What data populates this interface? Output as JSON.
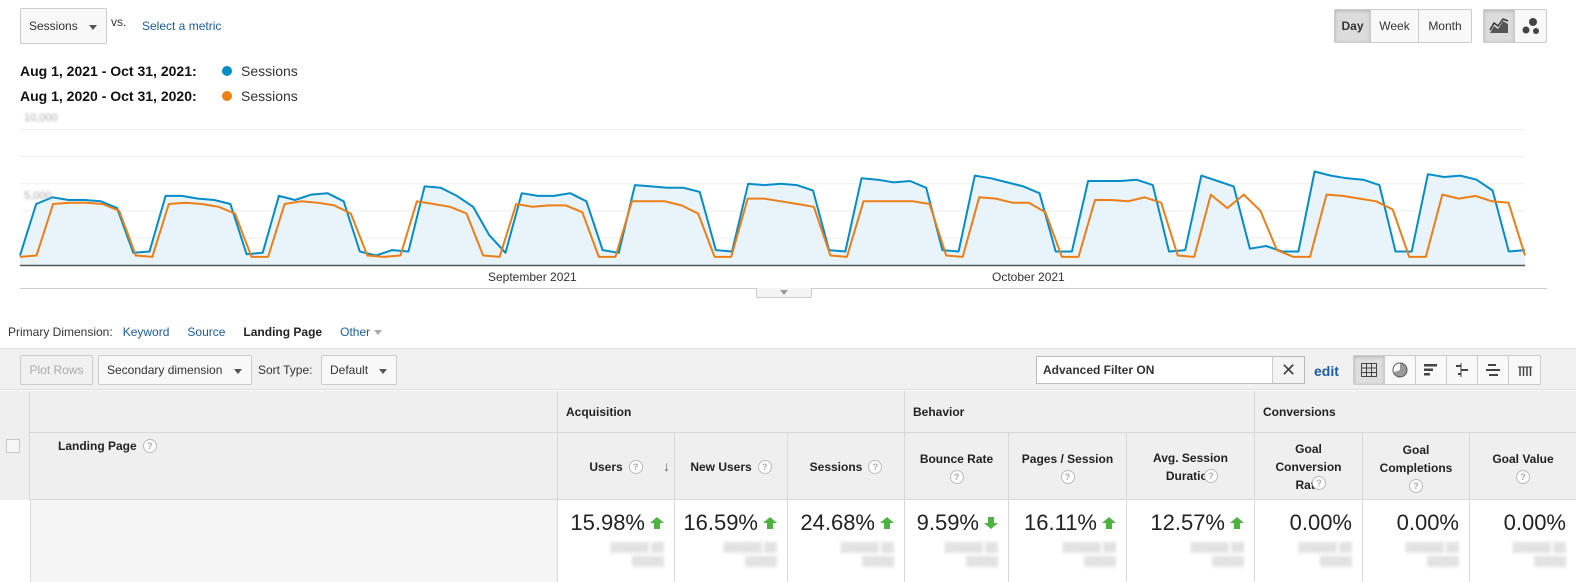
{
  "controls": {
    "metric_select": "Sessions",
    "vs_label": "vs.",
    "select_metric_link": "Select a metric",
    "periods": [
      "Day",
      "Week",
      "Month"
    ],
    "active_period": "Day",
    "chart_types": [
      "line-chart-icon",
      "motion-chart-icon"
    ]
  },
  "legend": [
    {
      "range": "Aug 1, 2021 - Oct 31, 2021:",
      "metric": "Sessions",
      "color": "#058dc7"
    },
    {
      "range": "Aug 1, 2020 - Oct 31, 2020:",
      "metric": "Sessions",
      "color": "#ed7e17"
    }
  ],
  "chart_data": {
    "type": "line",
    "y_tick_labels": [
      "10,000",
      "5,000"
    ],
    "ylim": [
      0,
      11000
    ],
    "x_tick_labels": [
      "September 2021",
      "October 2021"
    ],
    "series": [
      {
        "name": "Sessions",
        "period": "Aug 1, 2021 - Oct 31, 2021",
        "color": "#058dc7",
        "fill": true,
        "values": [
          700,
          4500,
          5000,
          4800,
          4800,
          4700,
          4200,
          900,
          1000,
          5100,
          5100,
          4900,
          4800,
          4500,
          800,
          900,
          5100,
          4800,
          5200,
          5300,
          4700,
          1000,
          700,
          1100,
          1000,
          5800,
          5700,
          5100,
          4300,
          2200,
          900,
          5300,
          5100,
          5100,
          5300,
          4700,
          1100,
          900,
          5900,
          5800,
          5700,
          5700,
          5400,
          1100,
          1000,
          6000,
          5900,
          6000,
          5900,
          5500,
          1100,
          1000,
          6400,
          6300,
          6100,
          6200,
          5700,
          1100,
          1000,
          6600,
          6400,
          6100,
          5800,
          5300,
          1000,
          1000,
          6200,
          6200,
          6200,
          6300,
          5900,
          1000,
          1100,
          6600,
          6200,
          5800,
          1200,
          1400,
          1000,
          1000,
          6900,
          6600,
          6400,
          6300,
          5900,
          1000,
          1000,
          6700,
          6500,
          6600,
          6300,
          5500,
          1000,
          1100
        ]
      },
      {
        "name": "Sessions",
        "period": "Aug 1, 2020 - Oct 31, 2020",
        "color": "#ed7e17",
        "fill": false,
        "values": [
          600,
          700,
          4500,
          4600,
          4600,
          4500,
          4000,
          700,
          600,
          4500,
          4600,
          4500,
          4300,
          3800,
          600,
          600,
          4500,
          4700,
          4600,
          4400,
          3800,
          700,
          600,
          700,
          4700,
          4500,
          4300,
          3800,
          700,
          600,
          4500,
          4300,
          4400,
          4400,
          3900,
          600,
          600,
          4700,
          4700,
          4700,
          4400,
          3800,
          600,
          600,
          4900,
          4900,
          4700,
          4500,
          4300,
          700,
          600,
          4700,
          4700,
          4700,
          4700,
          4500,
          700,
          600,
          5000,
          4900,
          4600,
          4600,
          3900,
          600,
          600,
          4800,
          4800,
          4700,
          5000,
          4600,
          700,
          600,
          5200,
          4200,
          5200,
          4000,
          1100,
          600,
          600,
          5200,
          5100,
          4900,
          4700,
          4100,
          600,
          600,
          5200,
          4900,
          5100,
          4700,
          4600,
          700
        ]
      }
    ]
  },
  "primary_dimension": {
    "label": "Primary Dimension:",
    "options": [
      "Keyword",
      "Source",
      "Landing Page",
      "Other"
    ],
    "active": "Landing Page"
  },
  "toolbar": {
    "plot_rows": "Plot Rows",
    "secondary_dimension": "Secondary dimension",
    "sort_type_label": "Sort Type:",
    "sort_type_value": "Default",
    "filter_value": "Advanced Filter ON",
    "edit": "edit",
    "view_icons": [
      "table-view-icon",
      "pie-view-icon",
      "performance-view-icon",
      "comparison-view-icon",
      "term-cloud-view-icon",
      "pivot-view-icon"
    ]
  },
  "table": {
    "first_column": "Landing Page",
    "groups": [
      "Acquisition",
      "Behavior",
      "Conversions"
    ],
    "columns": [
      {
        "label": "Users",
        "value": "15.98%",
        "trend": "up"
      },
      {
        "label": "New Users",
        "value": "16.59%",
        "trend": "up"
      },
      {
        "label": "Sessions",
        "value": "24.68%",
        "trend": "up"
      },
      {
        "label": "Bounce Rate",
        "value": "9.59%",
        "trend": "down"
      },
      {
        "label": "Pages / Session",
        "value": "16.11%",
        "trend": "up"
      },
      {
        "label": "Avg. Session Duration",
        "value": "12.57%",
        "trend": "up"
      },
      {
        "label": "Goal Conversion Rate",
        "value": "0.00%",
        "trend": "none"
      },
      {
        "label": "Goal Completions",
        "value": "0.00%",
        "trend": "none"
      },
      {
        "label": "Goal Value",
        "value": "0.00%",
        "trend": "none"
      }
    ],
    "trend_color": "#4db340"
  }
}
